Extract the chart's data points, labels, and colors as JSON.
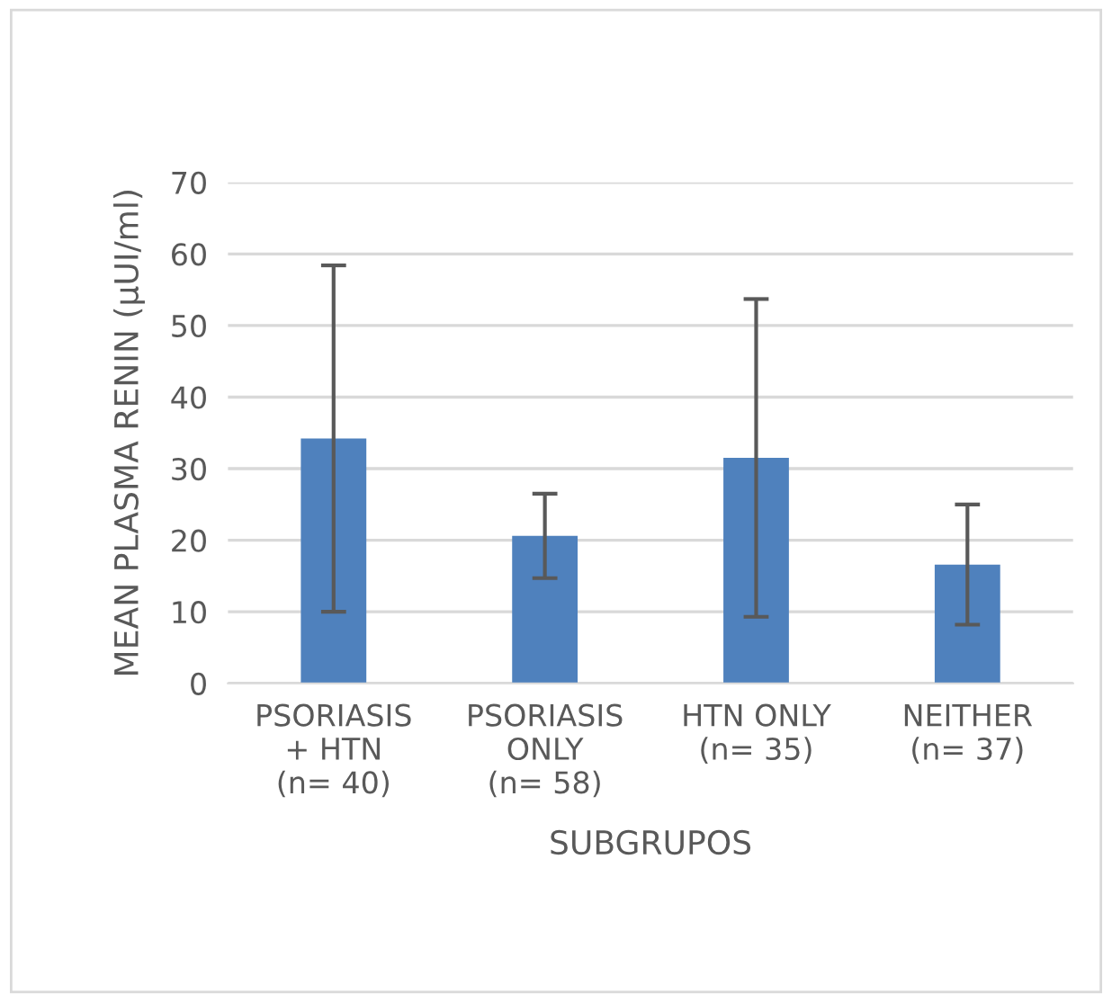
{
  "chart_data": {
    "type": "bar",
    "categories": [
      "PSORIASIS\n+ HTN\n(n= 40)",
      "PSORIASIS\nONLY\n(n= 58)",
      "HTN ONLY\n(n= 35)",
      "NEITHER\n(n= 37)"
    ],
    "values": [
      34.2,
      20.6,
      31.5,
      16.6
    ],
    "errors": [
      24.2,
      5.9,
      22.2,
      8.4
    ],
    "color": "#4f81bd",
    "xlabel": "SUBGRUPOS",
    "ylabel": "MEAN PLASMA RENIN (µUI/ml)",
    "ylim": [
      0,
      70
    ],
    "yticks": [
      0,
      10,
      20,
      30,
      40,
      50,
      60,
      70
    ],
    "grid": "y",
    "legend": false
  }
}
